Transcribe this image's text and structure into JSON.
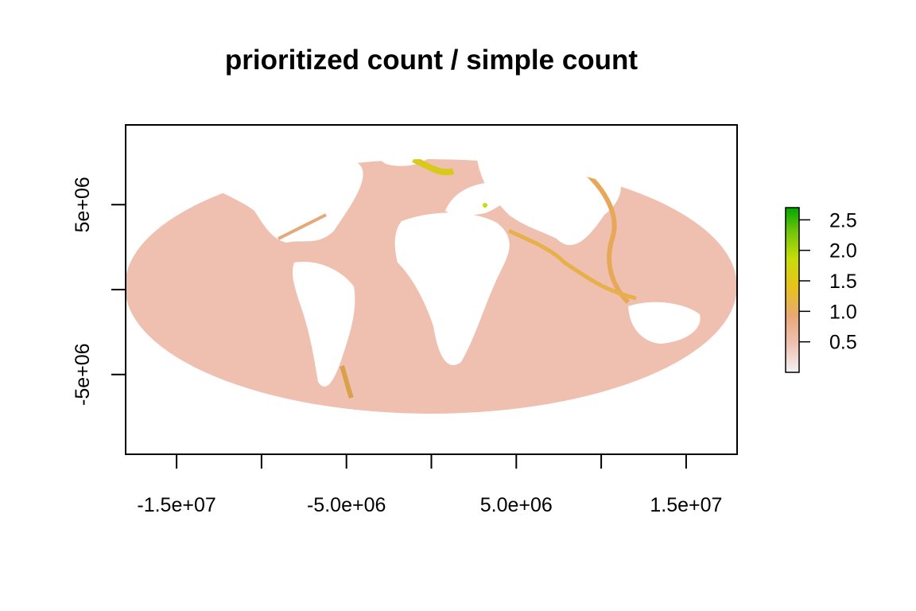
{
  "chart_data": {
    "type": "heatmap",
    "title": "prioritized count / simple count",
    "xlabel": "",
    "ylabel": "",
    "xlim": [
      -18000000,
      18000000
    ],
    "ylim": [
      -9700000,
      9700000
    ],
    "x_ticks": [
      -15000000,
      -10000000,
      -5000000,
      0,
      5000000,
      10000000,
      15000000
    ],
    "x_tick_labels": [
      "-1.5e+07",
      "",
      "-5.0e+06",
      "",
      "5.0e+06",
      "",
      "1.5e+07"
    ],
    "y_ticks": [
      5000000,
      0,
      -5000000
    ],
    "y_tick_labels": [
      "5e+06",
      "",
      "-5e+06"
    ],
    "legend": {
      "placement": "right",
      "range": [
        0,
        2.7
      ],
      "ticks": [
        0.5,
        1.0,
        1.5,
        2.0,
        2.5
      ],
      "tick_labels": [
        "0.5",
        "1.0",
        "1.5",
        "2.0",
        "2.5"
      ],
      "colors": [
        "#f2f2f2",
        "#efc2b3",
        "#eaa877",
        "#e6c31b",
        "#c7dd0a",
        "#6fc40a",
        "#00a600"
      ]
    },
    "map_projection": "Robinson-like world map, ocean cells shaded",
    "value_summary": {
      "open_ocean_typical": 0.5,
      "coastal_typical": 1.0,
      "max": 2.7
    }
  }
}
